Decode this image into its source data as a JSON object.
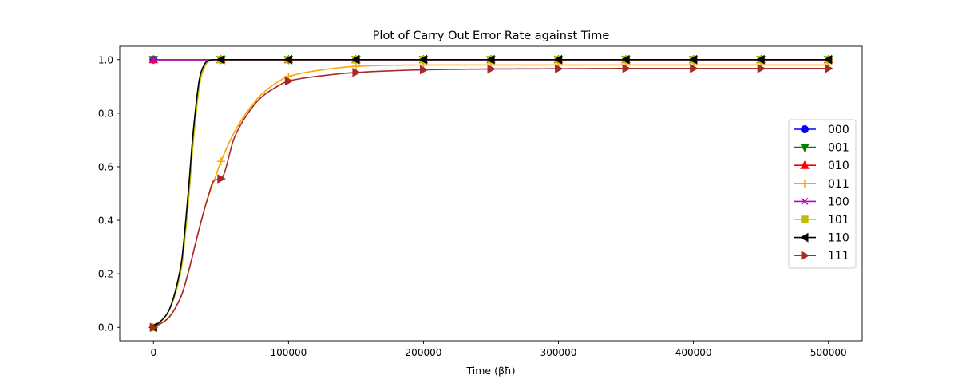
{
  "chart_data": {
    "type": "line",
    "title": "Plot of Carry Out Error Rate against Time",
    "xlabel": "Time (βħ)",
    "ylabel": "",
    "xlim": [
      -25000,
      525000
    ],
    "ylim": [
      -0.05,
      1.05
    ],
    "x_ticks": [
      0,
      100000,
      200000,
      300000,
      400000,
      500000
    ],
    "x_tick_labels": [
      "0",
      "100000",
      "200000",
      "300000",
      "400000",
      "500000"
    ],
    "y_ticks": [
      0.0,
      0.2,
      0.4,
      0.6,
      0.8,
      1.0
    ],
    "y_tick_labels": [
      "0.0",
      "0.2",
      "0.4",
      "0.6",
      "0.8",
      "1.0"
    ],
    "grid": false,
    "legend_position": "center-right",
    "x": [
      0,
      10000,
      20000,
      25000,
      30000,
      35000,
      40000,
      45000,
      50000,
      60000,
      70000,
      80000,
      90000,
      100000,
      125000,
      150000,
      175000,
      200000,
      250000,
      300000,
      350000,
      400000,
      450000,
      500000
    ],
    "marker_x": [
      0,
      50000,
      100000,
      150000,
      200000,
      250000,
      300000,
      350000,
      400000,
      450000,
      500000
    ],
    "series": [
      {
        "name": "000",
        "color": "#0000ff",
        "marker": "circle",
        "values": [
          1,
          1,
          1,
          1,
          1,
          1,
          1,
          1,
          1,
          1,
          1,
          1,
          1,
          1,
          1,
          1,
          1,
          1,
          1,
          1,
          1,
          1,
          1,
          1
        ]
      },
      {
        "name": "001",
        "color": "#008000",
        "marker": "triangle-down",
        "values": [
          1,
          1,
          1,
          1,
          1,
          1,
          1,
          1,
          1,
          1,
          1,
          1,
          1,
          1,
          1,
          1,
          1,
          1,
          1,
          1,
          1,
          1,
          1,
          1
        ]
      },
      {
        "name": "010",
        "color": "#ff0000",
        "marker": "triangle-up",
        "values": [
          1,
          1,
          1,
          1,
          1,
          1,
          1,
          1,
          1,
          1,
          1,
          1,
          1,
          1,
          1,
          1,
          1,
          1,
          1,
          1,
          1,
          1,
          1,
          1
        ]
      },
      {
        "name": "011",
        "color": "#ffa500",
        "marker": "plus",
        "values": [
          0,
          0.03,
          0.11,
          0.19,
          0.29,
          0.39,
          0.48,
          0.55,
          0.62,
          0.73,
          0.81,
          0.87,
          0.91,
          0.937,
          0.962,
          0.975,
          0.979,
          0.98,
          0.98,
          0.98,
          0.98,
          0.98,
          0.98,
          0.98
        ]
      },
      {
        "name": "100",
        "color": "#bf00bf",
        "marker": "x",
        "values": [
          1,
          1,
          1,
          1,
          1,
          1,
          1,
          1,
          1,
          1,
          1,
          1,
          1,
          1,
          1,
          1,
          1,
          1,
          1,
          1,
          1,
          1,
          1,
          1
        ]
      },
      {
        "name": "101",
        "color": "#bfbf00",
        "marker": "square",
        "values": [
          0,
          0.05,
          0.2,
          0.42,
          0.72,
          0.93,
          0.99,
          1.0,
          1.0,
          1.0,
          1.0,
          1.0,
          1.0,
          1.0,
          1.0,
          1.0,
          1.0,
          1.0,
          1.0,
          1.0,
          1.0,
          1.0,
          1.0,
          1.0
        ]
      },
      {
        "name": "110",
        "color": "#000000",
        "marker": "triangle-left",
        "values": [
          0,
          0.05,
          0.22,
          0.46,
          0.76,
          0.95,
          0.995,
          1.0,
          1.0,
          1.0,
          1.0,
          1.0,
          1.0,
          1.0,
          1.0,
          1.0,
          1.0,
          1.0,
          1.0,
          1.0,
          1.0,
          1.0,
          1.0,
          1.0
        ]
      },
      {
        "name": "111",
        "color": "#a52a2a",
        "marker": "triangle-right",
        "values": [
          0,
          0.03,
          0.11,
          0.19,
          0.29,
          0.39,
          0.48,
          0.55,
          0.555,
          0.71,
          0.8,
          0.86,
          0.895,
          0.92,
          0.94,
          0.952,
          0.958,
          0.962,
          0.965,
          0.966,
          0.967,
          0.967,
          0.967,
          0.967
        ]
      }
    ]
  }
}
